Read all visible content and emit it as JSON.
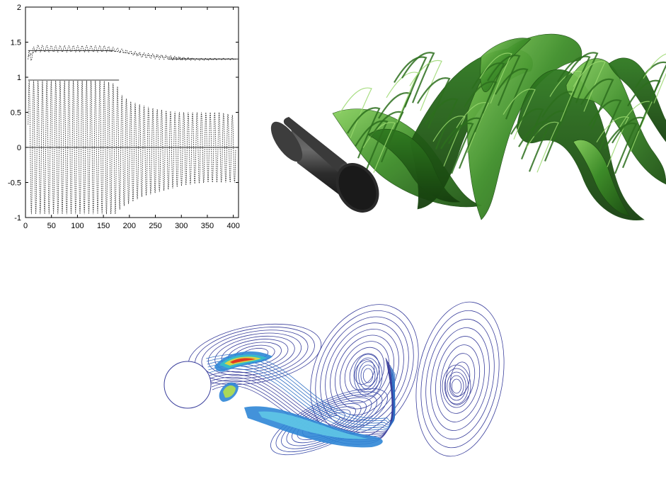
{
  "chart_data": {
    "type": "line",
    "title": "",
    "xlabel": "",
    "ylabel": "",
    "xlim": [
      0,
      410
    ],
    "ylim": [
      -1,
      2
    ],
    "x_ticks": [
      0,
      50,
      100,
      150,
      200,
      250,
      300,
      350,
      400
    ],
    "y_ticks": [
      -1,
      -0.5,
      0,
      0.5,
      1,
      1.5,
      2
    ],
    "x_tick_labels": [
      "0",
      "50",
      "100",
      "150",
      "200",
      "250",
      "300",
      "350",
      "400"
    ],
    "y_tick_labels": [
      "-1",
      "-0.5",
      "0",
      "0.5",
      "1",
      "1.5",
      "2"
    ],
    "grid": false,
    "legend": "none",
    "series": [
      {
        "style": "dotted oscillating (upper signal)",
        "envelope_x": [
          5,
          20,
          50,
          100,
          150,
          175,
          200,
          225,
          250,
          275,
          300,
          325,
          350,
          375,
          405
        ],
        "envelope_max": [
          1.36,
          1.46,
          1.45,
          1.45,
          1.45,
          1.42,
          1.38,
          1.35,
          1.33,
          1.31,
          1.29,
          1.27,
          1.27,
          1.27,
          1.27
        ],
        "envelope_min": [
          1.15,
          1.36,
          1.36,
          1.36,
          1.36,
          1.36,
          1.33,
          1.28,
          1.26,
          1.25,
          1.24,
          1.24,
          1.24,
          1.25,
          1.25
        ],
        "mean_x": [
          5,
          20,
          50,
          100,
          150,
          175,
          200,
          250,
          300,
          350,
          405
        ],
        "mean_y": [
          1.3,
          1.38,
          1.38,
          1.38,
          1.38,
          1.37,
          1.34,
          1.3,
          1.27,
          1.26,
          1.26
        ],
        "period": 8.5
      },
      {
        "style": "dotted oscillating (lower signal)",
        "envelope_x": [
          5,
          10,
          20,
          50,
          100,
          150,
          175,
          185,
          200,
          225,
          250,
          275,
          300,
          325,
          350,
          375,
          405
        ],
        "envelope_max": [
          0.95,
          0.95,
          0.95,
          0.95,
          0.95,
          0.95,
          0.9,
          0.75,
          0.66,
          0.6,
          0.55,
          0.52,
          0.5,
          0.5,
          0.5,
          0.5,
          0.45
        ],
        "envelope_min": [
          -0.3,
          -0.95,
          -0.95,
          -0.95,
          -0.95,
          -0.95,
          -0.95,
          -0.85,
          -0.8,
          -0.7,
          -0.65,
          -0.6,
          -0.55,
          -0.52,
          -0.5,
          -0.5,
          -0.5
        ],
        "period": 8.5
      }
    ],
    "reference_lines": [
      {
        "y": 0,
        "from": 0,
        "to": 410
      },
      {
        "y": 1.38,
        "from": 5,
        "to": 170
      },
      {
        "y": 0.96,
        "from": 5,
        "to": 180
      },
      {
        "y": 1.26,
        "from": 275,
        "to": 410
      }
    ]
  },
  "colors": {
    "iso_surface_dark": "#1f5a14",
    "iso_surface_mid": "#3e8a28",
    "iso_surface_light": "#7fc95a",
    "cylinder": "#2a2a2a",
    "contour_outer": "#3a3f9c",
    "contour_mid": "#2f86d6",
    "contour_hot": "#e2281c"
  }
}
